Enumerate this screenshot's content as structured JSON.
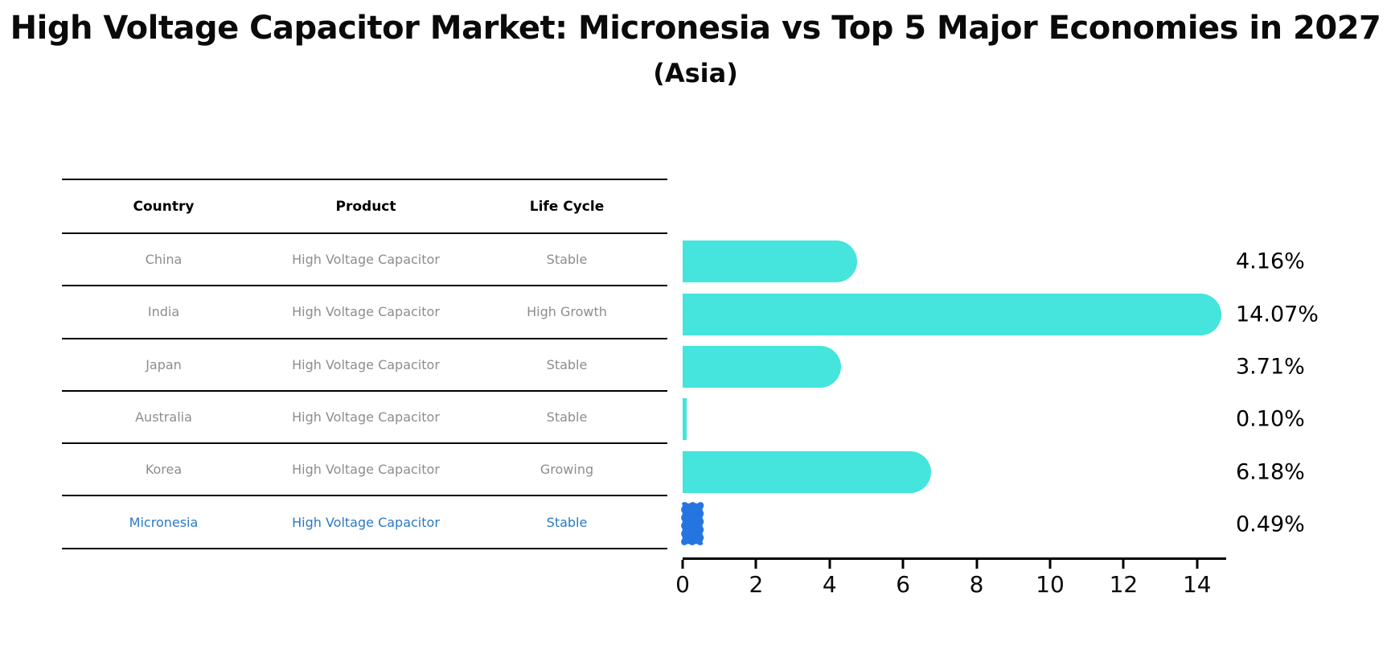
{
  "title": "High Voltage Capacitor Market: Micronesia vs Top 5 Major Economies in 2027",
  "subtitle": "(Asia)",
  "table": {
    "headers": [
      "Country",
      "Product",
      "Life Cycle"
    ],
    "rows": [
      {
        "country": "China",
        "product": "High Voltage Capacitor",
        "life_cycle": "Stable",
        "highlight": false
      },
      {
        "country": "India",
        "product": "High Voltage Capacitor",
        "life_cycle": "High Growth",
        "highlight": false
      },
      {
        "country": "Japan",
        "product": "High Voltage Capacitor",
        "life_cycle": "Stable",
        "highlight": false
      },
      {
        "country": "Australia",
        "product": "High Voltage Capacitor",
        "life_cycle": "Stable",
        "highlight": false
      },
      {
        "country": "Korea",
        "product": "High Voltage Capacitor",
        "life_cycle": "Growing",
        "highlight": false
      },
      {
        "country": "Micronesia",
        "product": "High Voltage Capacitor",
        "life_cycle": "Stable",
        "highlight": true
      }
    ]
  },
  "chart_data": {
    "type": "bar",
    "orientation": "horizontal",
    "title": "High Voltage Capacitor Market: Micronesia vs Top 5 Major Economies in 2027",
    "subtitle": "(Asia)",
    "categories": [
      "China",
      "India",
      "Japan",
      "Australia",
      "Korea",
      "Micronesia"
    ],
    "values": [
      4.16,
      14.07,
      3.71,
      0.1,
      6.18,
      0.49
    ],
    "value_labels": [
      "4.16%",
      "14.07%",
      "3.71%",
      "0.10%",
      "6.18%",
      "0.49%"
    ],
    "x_ticks": [
      "0",
      "2",
      "4",
      "6",
      "8",
      "10",
      "12",
      "14"
    ],
    "xlim": [
      0,
      14.8
    ],
    "grid": false,
    "legend": "none",
    "bar_color": "#45e4dc",
    "highlight_bar_color": "#2575e0",
    "highlight_index": 5,
    "unit": "%"
  },
  "colors": {
    "highlight_text": "#2a79c6",
    "row_text": "#8d8d8d",
    "header_text": "#000000",
    "axis_color": "#000000",
    "background": "#ffffff"
  }
}
